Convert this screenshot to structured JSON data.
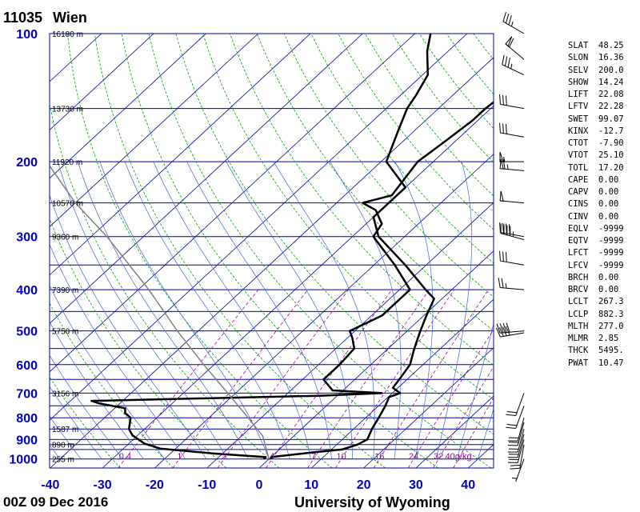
{
  "header": {
    "station": "11035",
    "name": "Wien"
  },
  "footer": {
    "time": "00Z 09 Dec 2016",
    "source": "University of Wyoming"
  },
  "colors": {
    "isobar": "#0000a0",
    "axis": "#0000c0",
    "isotherm": "#0000a0",
    "dry_adiabat": "#00a000",
    "moist_adiabat": "#4060e0",
    "mixing_ratio": "#a000a0",
    "temperature": "#000000",
    "dewpoint": "#000000",
    "parcel": "#808080"
  },
  "indices": [
    {
      "name": "SLAT",
      "value": "48.25"
    },
    {
      "name": "SLON",
      "value": "16.36"
    },
    {
      "name": "SELV",
      "value": "200.0"
    },
    {
      "name": "SHOW",
      "value": "14.24"
    },
    {
      "name": "LIFT",
      "value": "22.08"
    },
    {
      "name": "LFTV",
      "value": "22.28"
    },
    {
      "name": "SWET",
      "value": "99.07"
    },
    {
      "name": "KINX",
      "value": "-12.7"
    },
    {
      "name": "CTOT",
      "value": "-7.90"
    },
    {
      "name": "VTOT",
      "value": "25.10"
    },
    {
      "name": "TOTL",
      "value": "17.20"
    },
    {
      "name": "CAPE",
      "value": "0.00"
    },
    {
      "name": "CAPV",
      "value": "0.00"
    },
    {
      "name": "CINS",
      "value": "0.00"
    },
    {
      "name": "CINV",
      "value": "0.00"
    },
    {
      "name": "EQLV",
      "value": "-9999"
    },
    {
      "name": "EQTV",
      "value": "-9999"
    },
    {
      "name": "LFCT",
      "value": "-9999"
    },
    {
      "name": "LFCV",
      "value": "-9999"
    },
    {
      "name": "BRCH",
      "value": "0.00"
    },
    {
      "name": "BRCV",
      "value": "0.00"
    },
    {
      "name": "LCLT",
      "value": "267.3"
    },
    {
      "name": "LCLP",
      "value": "882.3"
    },
    {
      "name": "MLTH",
      "value": "277.0"
    },
    {
      "name": "MLMR",
      "value": "2.85"
    },
    {
      "name": "THCK",
      "value": "5495."
    },
    {
      "name": "PWAT",
      "value": "10.47"
    }
  ],
  "chart_data": {
    "type": "line",
    "diagram": "skew-T log-P",
    "xlabel": "",
    "ylabel": "",
    "xlim": [
      -40,
      45
    ],
    "ylim": [
      1050,
      100
    ],
    "y_scale": "log",
    "x_ticks": [
      "-40",
      "-30",
      "-20",
      "-10",
      "0",
      "10",
      "20",
      "30",
      "40"
    ],
    "y_ticks": [
      "100",
      "200",
      "300",
      "400",
      "500",
      "600",
      "700",
      "800",
      "900",
      "1000"
    ],
    "isobars": [
      100,
      150,
      200,
      250,
      300,
      350,
      400,
      450,
      500,
      550,
      600,
      650,
      700,
      750,
      800,
      850,
      900,
      925,
      950,
      1000,
      1050
    ],
    "height_labels": [
      {
        "p": 100,
        "text": "16180 m"
      },
      {
        "p": 150,
        "text": "13730 m"
      },
      {
        "p": 200,
        "text": "11920 m"
      },
      {
        "p": 250,
        "text": "10570 m"
      },
      {
        "p": 300,
        "text": "9360 m"
      },
      {
        "p": 400,
        "text": "7390 m"
      },
      {
        "p": 500,
        "text": "5750 m"
      },
      {
        "p": 700,
        "text": "3156 m"
      },
      {
        "p": 850,
        "text": "1587 m"
      },
      {
        "p": 925,
        "text": "890 m"
      },
      {
        "p": 1000,
        "text": "255 m"
      }
    ],
    "mixing_ratio_labels": [
      "0.4",
      "1",
      "2",
      "4",
      "7",
      "10",
      "16",
      "24",
      "32",
      "40g/kg"
    ],
    "mixing_ratios": [
      0.4,
      1,
      2,
      4,
      7,
      10,
      16,
      24,
      32,
      40
    ],
    "series": [
      {
        "role": "temperature",
        "points": [
          [
            1000,
            0.5
          ],
          [
            990,
            0
          ],
          [
            965,
            7
          ],
          [
            950,
            12
          ],
          [
            925,
            14
          ],
          [
            900,
            14.8
          ],
          [
            850,
            13.5
          ],
          [
            800,
            12.5
          ],
          [
            750,
            11.3
          ],
          [
            715,
            10.2
          ],
          [
            700,
            11.5
          ],
          [
            680,
            9
          ],
          [
            650,
            8.5
          ],
          [
            600,
            7.5
          ],
          [
            550,
            5
          ],
          [
            500,
            2.5
          ],
          [
            460,
            0.5
          ],
          [
            420,
            -1.5
          ],
          [
            400,
            -5
          ],
          [
            350,
            -14
          ],
          [
            300,
            -25
          ],
          [
            270,
            -30
          ],
          [
            250,
            -30
          ],
          [
            230,
            -30
          ],
          [
            200,
            -39
          ],
          [
            170,
            -43
          ],
          [
            150,
            -46
          ],
          [
            140,
            -47
          ],
          [
            125,
            -49
          ],
          [
            110,
            -54
          ],
          [
            100,
            -57
          ]
        ]
      },
      {
        "role": "dewpoint",
        "points": [
          [
            1000,
            -1
          ],
          [
            990,
            -1
          ],
          [
            970,
            -12
          ],
          [
            945,
            -23
          ],
          [
            920,
            -27
          ],
          [
            880,
            -31
          ],
          [
            850,
            -33
          ],
          [
            800,
            -35
          ],
          [
            780,
            -37
          ],
          [
            760,
            -38
          ],
          [
            740,
            -44
          ],
          [
            730,
            -46
          ],
          [
            710,
            -3
          ],
          [
            700,
            8
          ],
          [
            690,
            -2
          ],
          [
            650,
            -6
          ],
          [
            600,
            -6
          ],
          [
            550,
            -6.5
          ],
          [
            520,
            -9
          ],
          [
            500,
            -11
          ],
          [
            460,
            -8
          ],
          [
            450,
            -8
          ],
          [
            400,
            -8
          ],
          [
            350,
            -16
          ],
          [
            300,
            -26
          ],
          [
            280,
            -27
          ],
          [
            260,
            -31
          ],
          [
            250,
            -35
          ],
          [
            240,
            -31
          ],
          [
            200,
            -33
          ],
          [
            180,
            -32
          ],
          [
            160,
            -31
          ],
          [
            150,
            -31
          ],
          [
            140,
            -30.5
          ],
          [
            120,
            -29
          ],
          [
            110,
            -27
          ],
          [
            100,
            -29
          ]
        ]
      },
      {
        "role": "parcel",
        "points": [
          [
            1000,
            0
          ],
          [
            882,
            -6
          ],
          [
            850,
            -8.5
          ],
          [
            800,
            -12.5
          ],
          [
            700,
            -21.5
          ],
          [
            600,
            -32
          ],
          [
            500,
            -44
          ],
          [
            400,
            -58
          ],
          [
            300,
            -77
          ],
          [
            250,
            -90
          ],
          [
            200,
            -104
          ],
          [
            150,
            -122
          ]
        ]
      }
    ],
    "wind_barbs": [
      {
        "p": 100,
        "dir": 300,
        "kt": 35
      },
      {
        "p": 115,
        "dir": 310,
        "kt": 60
      },
      {
        "p": 125,
        "dir": 295,
        "kt": 35
      },
      {
        "p": 150,
        "dir": 280,
        "kt": 30
      },
      {
        "p": 175,
        "dir": 280,
        "kt": 30
      },
      {
        "p": 200,
        "dir": 270,
        "kt": 55
      },
      {
        "p": 210,
        "dir": 275,
        "kt": 65
      },
      {
        "p": 250,
        "dir": 275,
        "kt": 50
      },
      {
        "p": 300,
        "dir": 280,
        "kt": 40
      },
      {
        "p": 305,
        "dir": 285,
        "kt": 45
      },
      {
        "p": 350,
        "dir": 280,
        "kt": 30
      },
      {
        "p": 400,
        "dir": 275,
        "kt": 25
      },
      {
        "p": 500,
        "dir": 265,
        "kt": 40
      },
      {
        "p": 505,
        "dir": 260,
        "kt": 40
      },
      {
        "p": 700,
        "dir": 200,
        "kt": 20
      },
      {
        "p": 750,
        "dir": 200,
        "kt": 20
      },
      {
        "p": 800,
        "dir": 195,
        "kt": 20
      },
      {
        "p": 820,
        "dir": 195,
        "kt": 20
      },
      {
        "p": 850,
        "dir": 195,
        "kt": 20
      },
      {
        "p": 875,
        "dir": 195,
        "kt": 20
      },
      {
        "p": 900,
        "dir": 195,
        "kt": 20
      },
      {
        "p": 925,
        "dir": 190,
        "kt": 20
      },
      {
        "p": 1000,
        "dir": 200,
        "kt": 5
      }
    ]
  }
}
